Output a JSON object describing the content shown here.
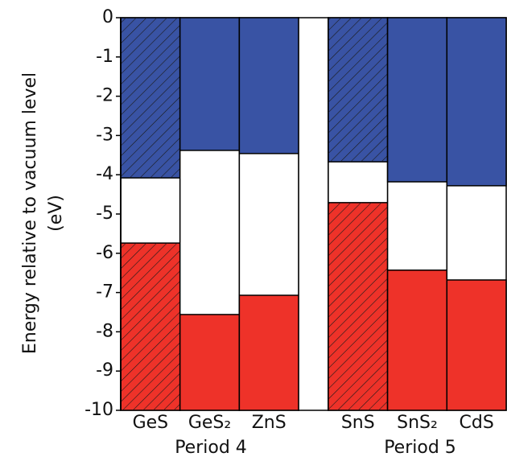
{
  "chart_data": {
    "type": "band-alignment",
    "ylabel": [
      "Energy relative to vacuum level",
      "(eV)"
    ],
    "categories": [
      "GeS",
      "GeS₂",
      "ZnS",
      null,
      "SnS",
      "SnS₂",
      "CdS"
    ],
    "group_labels": [
      "Period 4",
      "Period 5"
    ],
    "series": [
      {
        "color": "#3953a4",
        "values": [
          -4.08,
          -3.38,
          -3.46,
          null,
          -3.67,
          -4.18,
          -4.28
        ]
      },
      {
        "color": "#ee3229",
        "values": [
          -5.74,
          -7.56,
          -7.07,
          null,
          -4.71,
          -6.43,
          -6.68
        ]
      }
    ],
    "hatched": [
      true,
      false,
      false,
      false,
      true,
      false,
      false
    ],
    "ylim": [
      -10,
      0
    ],
    "yticks": [
      0,
      -1,
      -2,
      -3,
      -4,
      -5,
      -6,
      -7,
      -8,
      -9,
      -10
    ]
  }
}
